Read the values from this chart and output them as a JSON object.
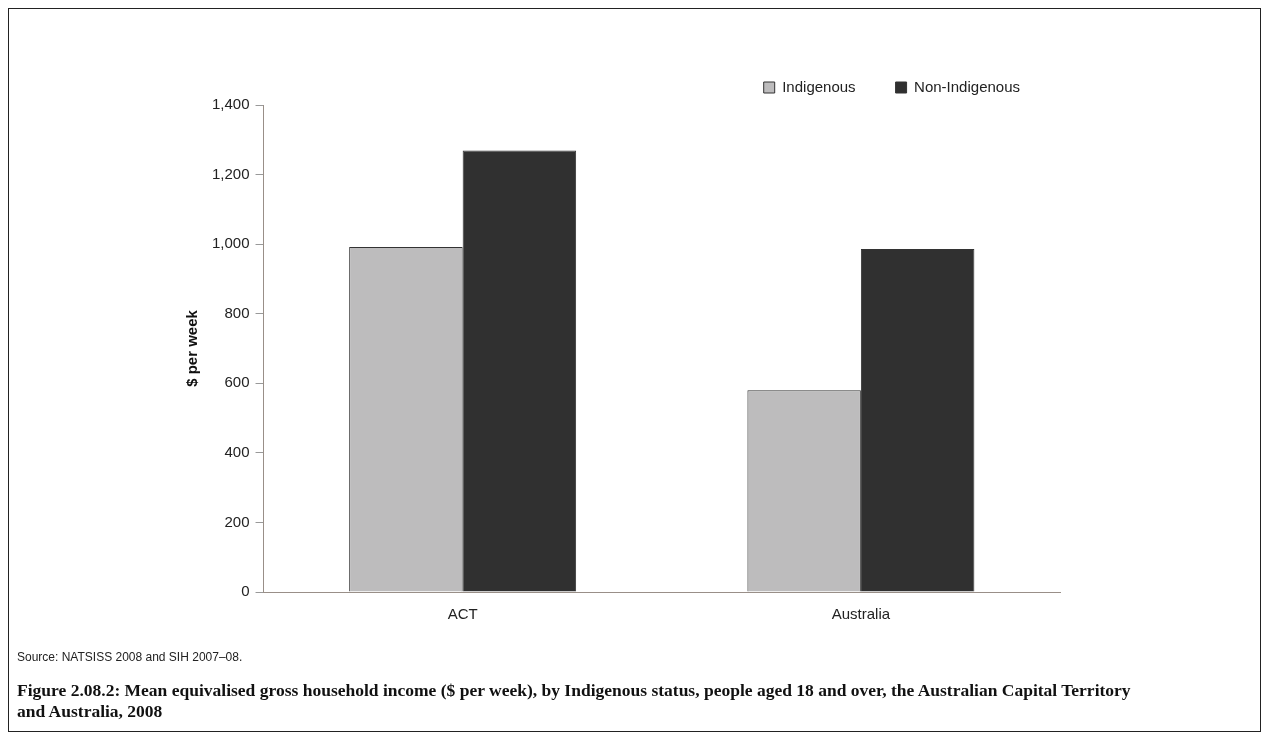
{
  "chart_data": {
    "type": "bar",
    "title": "Figure 2.08.2: Mean equivalised gross household income ($ per week), by Indigenous status, people aged 18 and over, the Australian Capital Territory and Australia, 2008",
    "ylabel": "$ per week",
    "annotations": [
      "Source: NATSISS 2008 and SIH 2007–08."
    ],
    "categories": [
      "ACT",
      "Australia"
    ],
    "series": [
      {
        "name": "Indigenous",
        "color": "#bdbcbd",
        "values": [
          992,
          580
        ]
      },
      {
        "name": "Non-Indigenous",
        "color": "#303030",
        "values": [
          1269,
          986
        ]
      }
    ],
    "ylim": [
      0,
      1400
    ],
    "yticks": [
      {
        "value": 0,
        "label": "0"
      },
      {
        "value": 200,
        "label": "200"
      },
      {
        "value": 400,
        "label": "400"
      },
      {
        "value": 600,
        "label": "600"
      },
      {
        "value": 800,
        "label": "800"
      },
      {
        "value": 1000,
        "label": "1,000"
      },
      {
        "value": 1200,
        "label": "1,200"
      },
      {
        "value": 1400,
        "label": "1,400"
      }
    ],
    "grid": false,
    "legend": "top right"
  }
}
